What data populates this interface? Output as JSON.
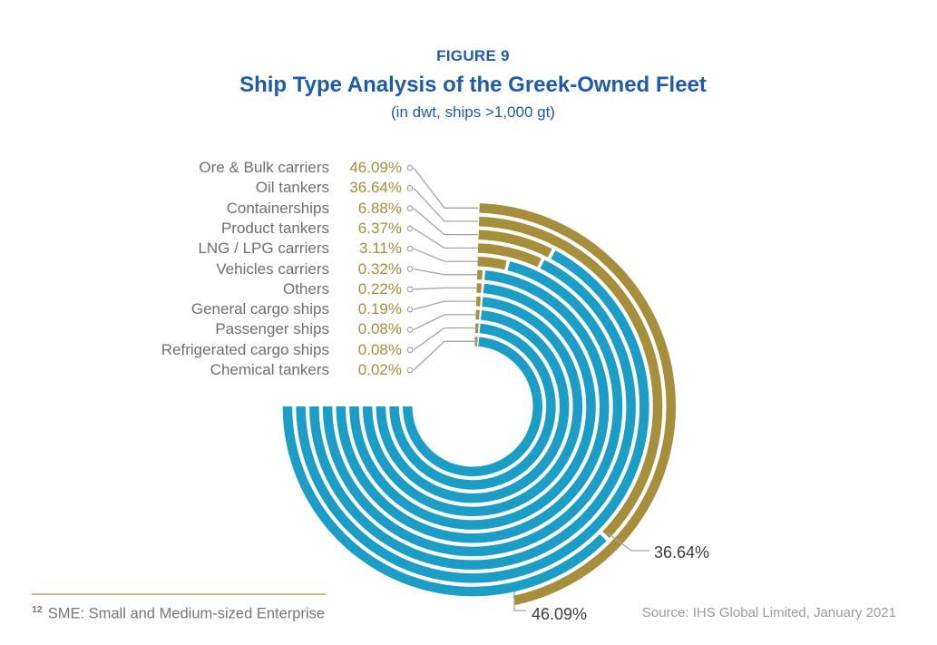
{
  "figure_label": "FIGURE 9",
  "title": "Ship Type Analysis of the Greek-Owned Fleet",
  "subtitle": "(in dwt, ships >1,000 gt)",
  "source": "Source: IHS Global Limited, January 2021",
  "footnote": {
    "marker": "12",
    "text": "SME: Small and Medium-sized Enterprise"
  },
  "colors": {
    "gold": "#a58e3c",
    "teal": "#1b9dc6",
    "title_blue": "#1f5ba8",
    "legend_label_gray": "#6e6f72",
    "leader_gray": "#a3a4a6",
    "callout_dark": "#3c3c3e",
    "source_gray": "#9a9ba0",
    "footnote_rule_tan": "#c9ba8b"
  },
  "chart_data": {
    "type": "radial-bar",
    "title": "Ship Type Analysis of the Greek-Owned Fleet",
    "subtitle": "(in dwt, ships >1,000 gt)",
    "unit": "% of dwt",
    "categories": [
      "Ore & Bulk carriers",
      "Oil tankers",
      "Containerships",
      "Product tankers",
      "LNG / LPG carriers",
      "Vehicles carriers",
      "Others",
      "General cargo ships",
      "Passenger ships",
      "Refrigerated cargo ships",
      "Chemical tankers"
    ],
    "values": [
      46.09,
      36.64,
      6.88,
      6.37,
      3.11,
      0.32,
      0.22,
      0.19,
      0.08,
      0.08,
      0.02
    ],
    "value_labels": [
      "46.09%",
      "36.64%",
      "6.88%",
      "6.37%",
      "3.11%",
      "0.32%",
      "0.22%",
      "0.19%",
      "0.08%",
      "0.08%",
      "0.02%"
    ],
    "angle_scale": "100% = 360deg, clockwise from 12 o'clock",
    "rings_order": "outermost = largest value",
    "bar_color": "#a58e3c",
    "track_color": "#1b9dc6",
    "track_end_deg": 270,
    "legend_position": "upper-left, leader lines to ring starts",
    "callouts": [
      {
        "category": "Oil tankers",
        "label": "36.64%"
      },
      {
        "category": "Ore & Bulk carriers",
        "label": "46.09%"
      }
    ]
  }
}
